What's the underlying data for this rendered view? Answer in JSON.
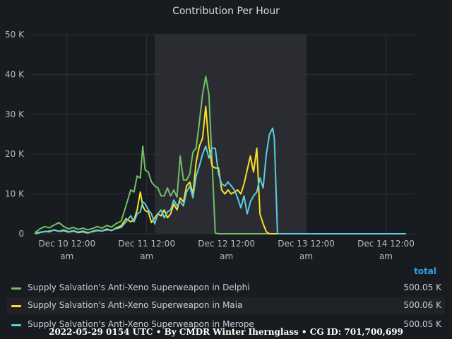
{
  "chart_data": {
    "type": "line",
    "title": "Contribution Per Hour",
    "x_ticks": [
      "Dec 10 12:00 am",
      "Dec 11 12:00 am",
      "Dec 12 12:00 am",
      "Dec 13 12:00 am",
      "Dec 14 12:00 am"
    ],
    "y_ticks": [
      "0",
      "10 K",
      "20 K",
      "30 K",
      "40 K",
      "50 K"
    ],
    "ylim": [
      0,
      50000
    ],
    "xlim_days": [
      9.55,
      14.35
    ],
    "highlight_days": [
      11.1,
      13.0
    ],
    "grid": true,
    "legend_position": "bottom",
    "legend_header": "total",
    "series": [
      {
        "name": "Supply Salvation's Anti-Xeno Superweapon in Delphi",
        "color": "#73bf69",
        "total": "500.05 K",
        "x": [
          9.6,
          9.66,
          9.72,
          9.78,
          9.84,
          9.9,
          9.96,
          10.02,
          10.08,
          10.14,
          10.2,
          10.26,
          10.32,
          10.38,
          10.44,
          10.5,
          10.56,
          10.62,
          10.68,
          10.74,
          10.8,
          10.84,
          10.88,
          10.92,
          10.95,
          10.98,
          11.02,
          11.06,
          11.1,
          11.14,
          11.18,
          11.22,
          11.26,
          11.3,
          11.34,
          11.38,
          11.42,
          11.46,
          11.5,
          11.54,
          11.58,
          11.62,
          11.66,
          11.7,
          11.74,
          11.78,
          11.82,
          11.86,
          11.9,
          11.94,
          11.98,
          12.02,
          12.06,
          12.1,
          12.14,
          12.16,
          12.17,
          12.2,
          12.6,
          13.0,
          13.5,
          14.0,
          14.25
        ],
        "y": [
          300,
          1200,
          1800,
          1500,
          2200,
          2800,
          1800,
          1200,
          1600,
          1100,
          1400,
          1000,
          1300,
          1800,
          1400,
          2100,
          1700,
          2600,
          3200,
          7000,
          11000,
          10500,
          14500,
          14000,
          22000,
          16000,
          15500,
          13000,
          12000,
          11500,
          9500,
          9500,
          11500,
          9500,
          11000,
          9200,
          19500,
          13500,
          13500,
          15000,
          20500,
          21500,
          28000,
          35000,
          39500,
          35000,
          18000,
          200,
          0,
          0,
          0,
          0,
          0,
          0,
          0,
          0,
          0,
          0,
          0,
          0,
          0,
          0,
          0
        ]
      },
      {
        "name": "Supply Salvation's Anti-Xeno Superweapon in Maia",
        "color": "#fade2a",
        "total": "500.06 K",
        "x": [
          9.6,
          9.66,
          9.72,
          9.78,
          9.84,
          9.9,
          9.96,
          10.02,
          10.08,
          10.14,
          10.2,
          10.26,
          10.32,
          10.38,
          10.44,
          10.5,
          10.56,
          10.62,
          10.68,
          10.74,
          10.8,
          10.84,
          10.88,
          10.92,
          10.95,
          10.98,
          11.02,
          11.06,
          11.1,
          11.14,
          11.18,
          11.22,
          11.26,
          11.3,
          11.34,
          11.38,
          11.42,
          11.46,
          11.5,
          11.54,
          11.58,
          11.62,
          11.66,
          11.7,
          11.74,
          11.78,
          11.82,
          11.86,
          11.9,
          11.94,
          11.98,
          12.02,
          12.06,
          12.1,
          12.14,
          12.18,
          12.22,
          12.26,
          12.3,
          12.34,
          12.38,
          12.42,
          12.46,
          12.5,
          12.54,
          12.58,
          12.62,
          12.66,
          12.7,
          12.74,
          12.78,
          12.82,
          12.86,
          12.9,
          13.5,
          14.0,
          14.25
        ],
        "y": [
          0,
          300,
          600,
          500,
          1000,
          600,
          800,
          400,
          700,
          300,
          500,
          200,
          600,
          900,
          700,
          1200,
          800,
          1500,
          2000,
          3800,
          3000,
          3500,
          6000,
          10500,
          7000,
          5800,
          5500,
          2800,
          4000,
          5000,
          4500,
          6000,
          4000,
          5000,
          7500,
          6000,
          9000,
          8000,
          12000,
          13000,
          10000,
          18000,
          22000,
          24000,
          32000,
          22000,
          17000,
          16500,
          16500,
          11000,
          10000,
          11000,
          10000,
          10500,
          11000,
          10000,
          12500,
          16000,
          19500,
          15500,
          21500,
          5000,
          2500,
          500,
          0,
          0,
          0,
          0,
          0,
          0,
          0,
          0,
          0,
          0,
          0,
          0,
          0
        ]
      },
      {
        "name": "Supply Salvation's Anti-Xeno Superweapon in Merope",
        "color": "#5bcde0",
        "total": "500.05 K",
        "x": [
          9.6,
          9.66,
          9.72,
          9.78,
          9.84,
          9.9,
          9.96,
          10.02,
          10.08,
          10.14,
          10.2,
          10.26,
          10.32,
          10.38,
          10.44,
          10.5,
          10.56,
          10.62,
          10.68,
          10.74,
          10.8,
          10.84,
          10.88,
          10.92,
          10.95,
          10.98,
          11.02,
          11.06,
          11.1,
          11.14,
          11.18,
          11.22,
          11.26,
          11.3,
          11.34,
          11.38,
          11.42,
          11.46,
          11.5,
          11.54,
          11.58,
          11.62,
          11.66,
          11.7,
          11.74,
          11.78,
          11.82,
          11.86,
          11.9,
          11.94,
          11.98,
          12.02,
          12.06,
          12.1,
          12.14,
          12.18,
          12.22,
          12.26,
          12.3,
          12.34,
          12.38,
          12.42,
          12.46,
          12.5,
          12.54,
          12.58,
          12.6,
          12.62,
          12.64,
          12.7,
          13.0,
          13.5,
          14.0,
          14.25
        ],
        "y": [
          100,
          400,
          500,
          700,
          900,
          600,
          1000,
          500,
          800,
          400,
          700,
          300,
          500,
          800,
          700,
          1000,
          900,
          1300,
          1600,
          3000,
          4500,
          3000,
          5000,
          5500,
          8000,
          7500,
          6000,
          5000,
          2500,
          5000,
          6000,
          4000,
          5500,
          6000,
          8500,
          7000,
          8000,
          7000,
          10500,
          12000,
          9000,
          14500,
          17000,
          20000,
          22000,
          19000,
          21500,
          21500,
          15000,
          12500,
          12000,
          13000,
          12000,
          11000,
          9000,
          6500,
          9500,
          5000,
          8000,
          9500,
          10500,
          14000,
          11500,
          20000,
          25000,
          26500,
          24000,
          12000,
          0,
          0,
          0,
          0,
          0,
          0
        ]
      }
    ]
  },
  "footer": "2022-05-29 0154 UTC • By CMDR Winter Ihernglass • CG ID: 701,700,699"
}
